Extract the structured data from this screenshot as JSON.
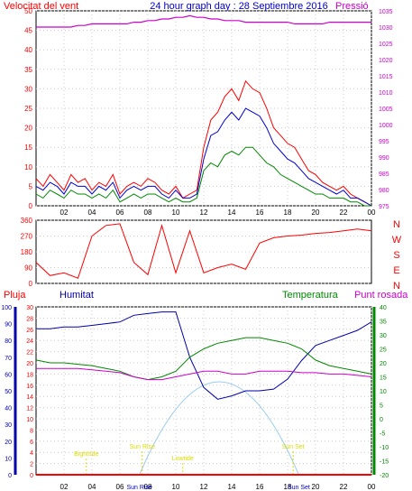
{
  "colors": {
    "wind": "#ff0000",
    "gust": "#ff0000",
    "avg": "#0000cc",
    "green": "#008800",
    "pressure": "#cc00cc",
    "rain": "#ff0000",
    "humidity": "#0000aa",
    "temp": "#008800",
    "dew": "#cc00cc",
    "sun": "#99ccee",
    "astro": "#dddd00"
  },
  "header": {
    "wind_label": "Velocitat del vent",
    "title": "24 hour graph day : 28 Septiembre 2016",
    "pressure_label": "Pressió"
  },
  "hour_ticks": [
    "02",
    "04",
    "06",
    "08",
    "10",
    "12",
    "14",
    "16",
    "18",
    "20",
    "22",
    "00"
  ],
  "hour_ticks_bottom": [
    "02",
    "04",
    "06",
    "08",
    "10",
    "12",
    "14",
    "16",
    "18",
    "20",
    "22",
    "00"
  ],
  "dir_labels": [
    "N",
    "W",
    "S",
    "E",
    "N"
  ],
  "bottom_labels": {
    "rain": "Pluja",
    "humidity": "Humitat",
    "temp": "Temperatura",
    "dew": "Punt rosada"
  },
  "astro_labels": [
    "Bighttide",
    "Sun Rise",
    "Lowtide",
    "Sun Set"
  ],
  "astro_bottom": [
    "Sun Rise",
    "Sun Set"
  ],
  "chart_data": [
    {
      "type": "line",
      "title": "24 hour graph day : 28 Septiembre 2016",
      "x_hours": [
        0,
        0.5,
        1,
        1.5,
        2,
        2.5,
        3,
        3.5,
        4,
        4.5,
        5,
        5.5,
        6,
        6.5,
        7,
        7.5,
        8,
        8.5,
        9,
        9.5,
        10,
        10.5,
        11,
        11.5,
        12,
        12.5,
        13,
        13.5,
        14,
        14.5,
        15,
        15.5,
        16,
        16.5,
        17,
        17.5,
        18,
        18.5,
        19,
        19.5,
        20,
        20.5,
        21,
        21.5,
        22,
        22.5,
        23,
        23.5,
        24
      ],
      "ylim_left": [
        0,
        50
      ],
      "yticks_left": [
        0,
        5,
        10,
        15,
        20,
        25,
        30,
        35,
        40,
        45,
        50
      ],
      "ylim_right": [
        975,
        1035
      ],
      "yticks_right": [
        975,
        980,
        985,
        990,
        995,
        1000,
        1005,
        1010,
        1015,
        1020,
        1025,
        1030,
        1035
      ],
      "series": [
        {
          "name": "Velocitat del vent",
          "values": [
            7,
            5,
            8,
            6,
            4,
            8,
            6,
            7,
            4,
            6,
            5,
            8,
            3,
            5,
            6,
            5,
            7,
            6,
            4,
            3,
            5,
            2,
            3,
            4,
            15,
            22,
            24,
            28,
            30,
            27,
            32,
            30,
            29,
            25,
            20,
            18,
            16,
            15,
            12,
            9,
            8,
            6,
            5,
            4,
            5,
            3,
            2,
            1,
            0
          ]
        },
        {
          "name": "",
          "values": [
            5,
            4,
            6,
            5,
            3,
            6,
            5,
            5,
            3,
            5,
            4,
            6,
            2,
            4,
            5,
            4,
            5,
            5,
            3,
            2,
            4,
            2,
            2,
            3,
            12,
            18,
            19,
            22,
            24,
            22,
            25,
            24,
            23,
            20,
            16,
            14,
            12,
            11,
            9,
            7,
            6,
            5,
            4,
            3,
            4,
            2,
            2,
            1,
            0
          ]
        },
        {
          "name": "",
          "values": [
            3,
            2,
            4,
            3,
            2,
            4,
            3,
            3,
            2,
            3,
            2,
            4,
            1,
            2,
            3,
            2,
            3,
            3,
            2,
            1,
            2,
            1,
            1,
            2,
            9,
            11,
            10,
            13,
            14,
            13,
            15,
            15,
            13,
            11,
            10,
            8,
            7,
            6,
            5,
            4,
            3,
            3,
            2,
            2,
            2,
            1,
            1,
            0,
            0
          ]
        },
        {
          "name": "Pressió",
          "values": [
            1030,
            1030,
            1030,
            1030,
            1030,
            1030,
            1030.5,
            1030.5,
            1031,
            1031,
            1031,
            1031,
            1031,
            1031,
            1031.5,
            1031.5,
            1032,
            1032,
            1032.5,
            1032.5,
            1033,
            1033,
            1033.5,
            1033,
            1033,
            1032.5,
            1032.5,
            1032,
            1032,
            1032,
            1031.5,
            1031.5,
            1031.5,
            1031.5,
            1031.5,
            1031.5,
            1031.5,
            1031,
            1031,
            1031,
            1031,
            1031,
            1031.5,
            1031.5,
            1031.5,
            1031.5,
            1031.5,
            1031.5,
            1031.5
          ]
        }
      ]
    },
    {
      "type": "line",
      "ylim": [
        0,
        360
      ],
      "yticks": [
        0,
        90,
        180,
        270,
        360
      ],
      "x_hours": [
        0,
        1,
        2,
        3,
        4,
        5,
        6,
        7,
        8,
        9,
        10,
        11,
        12,
        13,
        14,
        15,
        16,
        17,
        18,
        19,
        20,
        21,
        22,
        23,
        24
      ],
      "series": [
        {
          "name": "",
          "values": [
            120,
            45,
            60,
            30,
            270,
            330,
            340,
            120,
            50,
            330,
            60,
            300,
            60,
            90,
            110,
            80,
            230,
            260,
            270,
            275,
            285,
            290,
            300,
            310,
            300
          ]
        }
      ]
    },
    {
      "type": "line",
      "x_hours": [
        0,
        1,
        2,
        3,
        4,
        5,
        6,
        7,
        8,
        9,
        10,
        11,
        12,
        13,
        14,
        15,
        16,
        17,
        18,
        19,
        20,
        21,
        22,
        23,
        24
      ],
      "ylim_left": [
        0,
        100
      ],
      "yticks_left": [
        0,
        10,
        20,
        30,
        40,
        50,
        60,
        70,
        80,
        90,
        100
      ],
      "ylim_rain": [
        0,
        30
      ],
      "yticks_rain": [
        0,
        2,
        4,
        6,
        8,
        10,
        12,
        14,
        16,
        18,
        20,
        22,
        24,
        26,
        28,
        30
      ],
      "ylim_right": [
        -20,
        40
      ],
      "yticks_right": [
        -20,
        -15,
        -10,
        -5,
        0,
        5,
        10,
        15,
        20,
        25,
        30,
        35,
        40
      ],
      "series": [
        {
          "name": "Humitat",
          "values": [
            87,
            87,
            88,
            88,
            89,
            90,
            91,
            95,
            96,
            97,
            97,
            70,
            52,
            45,
            47,
            50,
            50,
            51,
            57,
            68,
            77,
            80,
            83,
            86,
            91
          ]
        },
        {
          "name": "Temperatura",
          "values": [
            21,
            20,
            20,
            19.5,
            19,
            18,
            17,
            15,
            14,
            15,
            17,
            22,
            25,
            27,
            28,
            29,
            29,
            28,
            27,
            25,
            21,
            19,
            18,
            17,
            16
          ]
        },
        {
          "name": "Punt rosada",
          "values": [
            18,
            18,
            18,
            18,
            17.5,
            17,
            16.5,
            15,
            14,
            14,
            15,
            16,
            17,
            17,
            16,
            16,
            17,
            17,
            17,
            16.5,
            16.5,
            16,
            16,
            15.5,
            15
          ]
        },
        {
          "name": "Pluja",
          "values": [
            0,
            0,
            0,
            0,
            0,
            0,
            0,
            0,
            0,
            0,
            0,
            0,
            0,
            0,
            0,
            0,
            0,
            0,
            0,
            0,
            0,
            0,
            0,
            0,
            0
          ]
        }
      ]
    }
  ]
}
